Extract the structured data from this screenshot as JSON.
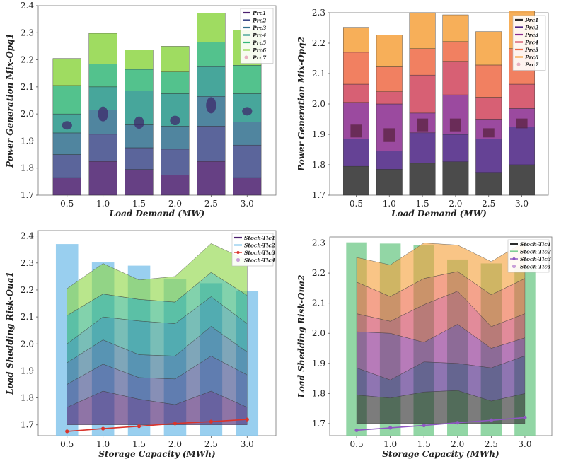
{
  "colors": {
    "viridis": [
      "#4b1f6f",
      "#3e4a89",
      "#31708e",
      "#27968a",
      "#35b779",
      "#8ed645",
      "#c8e020"
    ],
    "inferno": [
      "#2b2b2b",
      "#4a2183",
      "#8a2a8e",
      "#d0445c",
      "#ee6a45",
      "#f6a13c",
      "#f7d95b"
    ],
    "stoch_blue": "#87c7ec",
    "stoch_green": "#7fcf95",
    "red_line": "#d9342b",
    "purple_line": "#8e57c2"
  },
  "chart_data": [
    {
      "id": "top-left",
      "type": "bar",
      "stacked": true,
      "palette": "viridis",
      "categories": [
        "0.5",
        "1.0",
        "1.5",
        "2.0",
        "2.5",
        "3.0"
      ],
      "ylabel": "Power Generation Mix-Opq1",
      "xlabel": "Load Demand (MW)",
      "ylim": [
        1.7,
        2.4
      ],
      "yticks": [
        "1.7",
        "1.8",
        "1.9",
        "2.0",
        "2.1",
        "2.2",
        "2.3",
        "2.4"
      ],
      "legend": [
        "Prc1",
        "Prc2",
        "Prc3",
        "Prc4",
        "Prc5",
        "Prc6",
        "Prc7"
      ],
      "boundaries": [
        [
          1.765,
          1.85,
          1.93,
          2.0,
          2.105,
          2.205
        ],
        [
          1.825,
          1.925,
          2.015,
          2.1,
          2.185,
          2.298
        ],
        [
          1.795,
          1.875,
          1.96,
          2.085,
          2.165,
          2.237
        ],
        [
          1.775,
          1.87,
          1.955,
          2.075,
          2.155,
          2.25
        ],
        [
          1.825,
          1.955,
          2.065,
          2.175,
          2.265,
          2.372
        ],
        [
          1.765,
          1.885,
          1.97,
          2.075,
          2.18,
          2.31
        ]
      ],
      "ellipses": [
        {
          "y": 1.958,
          "h": 0.028
        },
        {
          "y": 2.0,
          "h": 0.055
        },
        {
          "y": 1.968,
          "h": 0.045
        },
        {
          "y": 1.976,
          "h": 0.035
        },
        {
          "y": 2.032,
          "h": 0.06
        },
        {
          "y": 2.01,
          "h": 0.025
        }
      ]
    },
    {
      "id": "top-right",
      "type": "bar",
      "stacked": true,
      "palette": "inferno",
      "categories": [
        "0.5",
        "1.0",
        "1.5",
        "2.0",
        "2.5",
        "3.0"
      ],
      "ylabel": "Power Generation Mix-Opq2",
      "xlabel": "Load Demand (MW)",
      "ylim": [
        1.7,
        2.3
      ],
      "yticks": [
        "1.7",
        "1.8",
        "1.9",
        "2.0",
        "2.1",
        "2.2",
        "2.3"
      ],
      "legend": [
        "Prc1",
        "Prc2",
        "Prc3",
        "Prc4",
        "Prc5",
        "Prc6",
        "Prc7"
      ],
      "boundaries": [
        [
          1.795,
          1.885,
          2.005,
          2.065,
          2.17,
          2.252
        ],
        [
          1.785,
          1.845,
          2.0,
          2.04,
          2.122,
          2.227
        ],
        [
          1.805,
          1.905,
          1.97,
          2.095,
          2.182,
          2.3
        ],
        [
          1.81,
          1.9,
          2.03,
          2.14,
          2.205,
          2.293
        ],
        [
          1.775,
          1.885,
          1.95,
          2.022,
          2.128,
          2.238
        ],
        [
          1.8,
          1.925,
          1.985,
          2.065,
          2.182,
          2.305
        ]
      ],
      "boxes": [
        {
          "lo": 1.89,
          "hi": 1.932
        },
        {
          "lo": 1.875,
          "hi": 1.92
        },
        {
          "lo": 1.91,
          "hi": 1.952
        },
        {
          "lo": 1.91,
          "hi": 1.952
        },
        {
          "lo": 1.89,
          "hi": 1.92
        },
        {
          "lo": 1.92,
          "hi": 1.952
        }
      ]
    },
    {
      "id": "bottom-left",
      "type": "bar+area+line",
      "palette": "viridis",
      "categories": [
        "0.5",
        "1.0",
        "1.5",
        "2.0",
        "2.5",
        "3.0"
      ],
      "ylabel": "Load Shedding Risk-Oua1",
      "xlabel": "Storage Capacity (MWh)",
      "ylim": [
        1.66,
        2.42
      ],
      "yticks": [
        "1.7",
        "1.8",
        "1.9",
        "2.0",
        "2.1",
        "2.2",
        "2.3",
        "2.4"
      ],
      "legend": [
        "Stoch-Tlc1",
        "Stoch-Tlc2",
        "Stoch-Tlc3",
        "Stoch-Tlc4"
      ],
      "bars": [
        2.37,
        2.302,
        2.29,
        2.24,
        2.225,
        2.195
      ],
      "bar_base": 1.66,
      "area_base": 1.7,
      "area_boundaries": [
        [
          1.765,
          1.85,
          1.93,
          2.0,
          2.105,
          2.205
        ],
        [
          1.825,
          1.925,
          2.015,
          2.1,
          2.185,
          2.298
        ],
        [
          1.795,
          1.875,
          1.96,
          2.085,
          2.165,
          2.237
        ],
        [
          1.775,
          1.87,
          1.955,
          2.075,
          2.155,
          2.25
        ],
        [
          1.825,
          1.955,
          2.065,
          2.175,
          2.265,
          2.372
        ],
        [
          1.765,
          1.885,
          1.97,
          2.075,
          2.18,
          2.31
        ]
      ],
      "line": [
        1.676,
        1.686,
        1.695,
        1.705,
        1.712,
        1.72
      ]
    },
    {
      "id": "bottom-right",
      "type": "bar+area+line",
      "palette": "inferno",
      "categories": [
        "0.5",
        "1.0",
        "1.5",
        "2.0",
        "2.5",
        "3.0"
      ],
      "ylabel": "Load Shedding Risk-Oua2",
      "xlabel": "Storage Capacity (MWh)",
      "ylim": [
        1.66,
        2.32
      ],
      "yticks": [
        "1.7",
        "1.8",
        "1.9",
        "2.0",
        "2.1",
        "2.2",
        "2.3"
      ],
      "legend": [
        "Stoch-Tlc1",
        "Stoch-Tlc2",
        "Stoch-Tlc3",
        "Stoch-Tlc4"
      ],
      "bars": [
        2.302,
        2.298,
        2.292,
        2.245,
        2.232,
        2.22
      ],
      "bar_base": 1.66,
      "area_base": 1.7,
      "area_boundaries": [
        [
          1.795,
          1.885,
          2.005,
          2.065,
          2.17,
          2.252
        ],
        [
          1.785,
          1.845,
          2.0,
          2.04,
          2.122,
          2.227
        ],
        [
          1.805,
          1.905,
          1.97,
          2.095,
          2.182,
          2.3
        ],
        [
          1.81,
          1.9,
          2.03,
          2.14,
          2.205,
          2.293
        ],
        [
          1.775,
          1.885,
          1.95,
          2.022,
          2.128,
          2.238
        ],
        [
          1.8,
          1.925,
          1.985,
          2.065,
          2.182,
          2.305
        ]
      ],
      "line": [
        1.678,
        1.686,
        1.694,
        1.703,
        1.711,
        1.72
      ]
    }
  ]
}
